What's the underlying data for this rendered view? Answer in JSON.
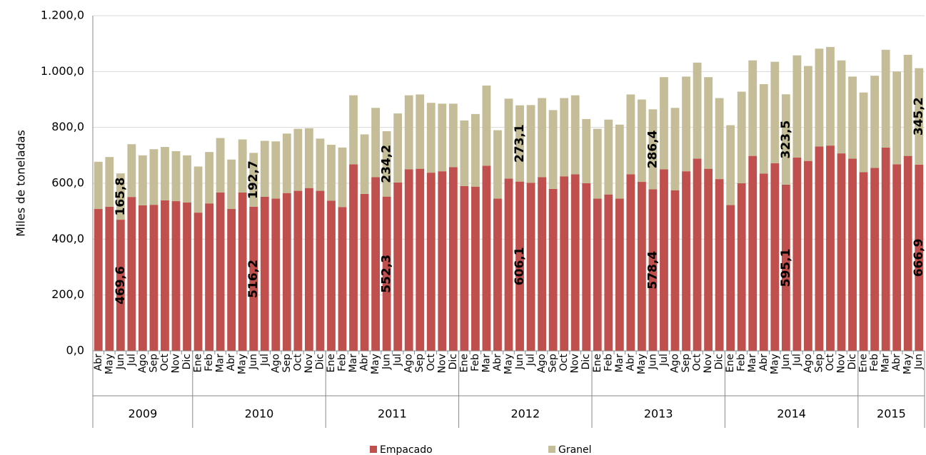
{
  "chart_data": {
    "type": "bar",
    "stacked": true,
    "y_label": "Miles de toneladas",
    "ylim": [
      0,
      1200
    ],
    "yticks": [
      {
        "value": 0,
        "label": "0,0"
      },
      {
        "value": 200,
        "label": "200,0"
      },
      {
        "value": 400,
        "label": "400,0"
      },
      {
        "value": 600,
        "label": "600,0"
      },
      {
        "value": 800,
        "label": "800,0"
      },
      {
        "value": 1000,
        "label": "1.000,0"
      },
      {
        "value": 1200,
        "label": "1.200,0"
      }
    ],
    "grid": true,
    "legend": "bottom",
    "categories": [
      "Abr",
      "May",
      "Jun",
      "Jul",
      "Ago",
      "Sep",
      "Oct",
      "Nov",
      "Dic",
      "Ene",
      "Feb",
      "Mar",
      "Abr",
      "May",
      "Jun",
      "Jul",
      "Ago",
      "Sep",
      "Oct",
      "Nov",
      "Dic",
      "Ene",
      "Feb",
      "Mar",
      "Abr",
      "May",
      "Jun",
      "Jul",
      "Ago",
      "Sep",
      "Oct",
      "Nov",
      "Dic",
      "Ene",
      "Feb",
      "Mar",
      "Abr",
      "May",
      "Jun",
      "Jul",
      "Ago",
      "Sep",
      "Oct",
      "Nov",
      "Dic",
      "Ene",
      "Feb",
      "Mar",
      "Abr",
      "May",
      "Jun",
      "Jul",
      "Ago",
      "Sep",
      "Oct",
      "Nov",
      "Dic",
      "Ene",
      "Feb",
      "Mar",
      "Abr",
      "May",
      "Jun",
      "Jul",
      "Ago",
      "Sep",
      "Oct",
      "Nov",
      "Dic",
      "Ene",
      "Feb",
      "Mar",
      "Abr",
      "May",
      "Jun"
    ],
    "year_groups": [
      {
        "name": "2009",
        "months": 9
      },
      {
        "name": "2010",
        "months": 12
      },
      {
        "name": "2011",
        "months": 12
      },
      {
        "name": "2012",
        "months": 12
      },
      {
        "name": "2013",
        "months": 12
      },
      {
        "name": "2014",
        "months": 12
      },
      {
        "name": "2015",
        "months": 6
      }
    ],
    "series": [
      {
        "name": "Empacado",
        "color": "#c0504d",
        "values": [
          508,
          516,
          469.6,
          551,
          521,
          523,
          539,
          536,
          531,
          495,
          528,
          567,
          508,
          567,
          516.2,
          552,
          545,
          565,
          573,
          583,
          573,
          538,
          515,
          668,
          562,
          622,
          552.3,
          603,
          650,
          652,
          638,
          643,
          658,
          590,
          588,
          663,
          545,
          617,
          606.1,
          602,
          622,
          580,
          625,
          632,
          600,
          545,
          560,
          545,
          632,
          605,
          578.4,
          650,
          575,
          643,
          688,
          652,
          615,
          522,
          600,
          698,
          635,
          672,
          595.1,
          692,
          680,
          732,
          735,
          707,
          688,
          640,
          655,
          728,
          668,
          698,
          666.9
        ],
        "value_labels": [
          null,
          null,
          "469,6",
          null,
          null,
          null,
          null,
          null,
          null,
          null,
          null,
          null,
          null,
          null,
          "516,2",
          null,
          null,
          null,
          null,
          null,
          null,
          null,
          null,
          null,
          null,
          null,
          "552,3",
          null,
          null,
          null,
          null,
          null,
          null,
          null,
          null,
          null,
          null,
          null,
          "606,1",
          null,
          null,
          null,
          null,
          null,
          null,
          null,
          null,
          null,
          null,
          null,
          "578,4",
          null,
          null,
          null,
          null,
          null,
          null,
          null,
          null,
          null,
          null,
          null,
          "595,1",
          null,
          null,
          null,
          null,
          null,
          null,
          null,
          null,
          null,
          null,
          null,
          "666,9"
        ]
      },
      {
        "name": "Granel",
        "color": "#c4bd97",
        "values": [
          169,
          178,
          165.8,
          189,
          179,
          199,
          191,
          179,
          169,
          165,
          184,
          195,
          177,
          190,
          192.7,
          200,
          205,
          213,
          222,
          214,
          187,
          200,
          213,
          247,
          213,
          248,
          234.2,
          247,
          265,
          266,
          250,
          242,
          227,
          235,
          260,
          287,
          245,
          286,
          273.1,
          278,
          283,
          282,
          280,
          283,
          230,
          250,
          268,
          265,
          286,
          295,
          286.4,
          330,
          295,
          339,
          344,
          328,
          290,
          286,
          328,
          342,
          320,
          363,
          323.5,
          366,
          340,
          350,
          353,
          333,
          294,
          285,
          330,
          350,
          332,
          362,
          345.2
        ],
        "value_labels": [
          null,
          null,
          "165,8",
          null,
          null,
          null,
          null,
          null,
          null,
          null,
          null,
          null,
          null,
          null,
          "192,7",
          null,
          null,
          null,
          null,
          null,
          null,
          null,
          null,
          null,
          null,
          null,
          "234,2",
          null,
          null,
          null,
          null,
          null,
          null,
          null,
          null,
          null,
          null,
          null,
          "273,1",
          null,
          null,
          null,
          null,
          null,
          null,
          null,
          null,
          null,
          null,
          null,
          "286,4",
          null,
          null,
          null,
          null,
          null,
          null,
          null,
          null,
          null,
          null,
          null,
          "323,5",
          null,
          null,
          null,
          null,
          null,
          null,
          null,
          null,
          null,
          null,
          null,
          "345,2"
        ]
      }
    ]
  }
}
